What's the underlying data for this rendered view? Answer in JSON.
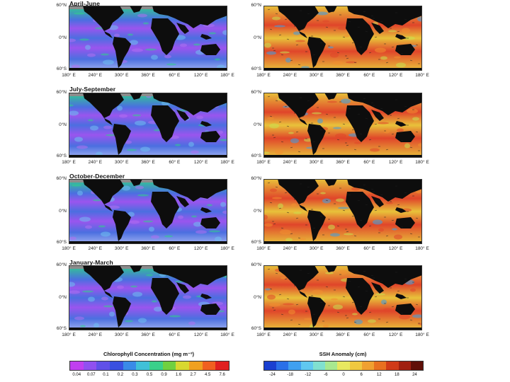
{
  "rows": [
    {
      "season": "April-June"
    },
    {
      "season": "July-September"
    },
    {
      "season": "October-December"
    },
    {
      "season": "January-March"
    }
  ],
  "latitude_labels": [
    "60°N",
    "0°N",
    "60°S"
  ],
  "longitude_labels": [
    "180° E",
    "240° E",
    "300° E",
    "360° E",
    "60° E",
    "120° E",
    "180° E"
  ],
  "colors": {
    "land": "#0d0d0d",
    "ice": "#8c8c8c",
    "chl_low": "#9a55ee",
    "chl_mid": "#4b6fe0",
    "chl_high": "#2fd08a",
    "ssh_base": "#e8c23a",
    "ssh_hot": "#e0452a",
    "ssh_cold": "#3aa0e8"
  },
  "colorbars": {
    "chlorophyll": {
      "title": "Chlorophyll Concentration (mg m⁻³)",
      "ticks": [
        "0.04",
        "0.07",
        "0.1",
        "0.2",
        "0.3",
        "0.5",
        "0.9",
        "1.6",
        "2.7",
        "4.5",
        "7.6"
      ],
      "colors": [
        "#c040f0",
        "#9050f0",
        "#6050e8",
        "#3a50e0",
        "#3a8ae8",
        "#40c0d8",
        "#3ad08a",
        "#70d040",
        "#d8d830",
        "#f0a020",
        "#f06020",
        "#e02020"
      ]
    },
    "ssh": {
      "title": "SSH Anomaly (cm)",
      "ticks": [
        "-24",
        "-18",
        "-12",
        "-6",
        "0",
        "6",
        "12",
        "18",
        "24"
      ],
      "colors": [
        "#1a40d0",
        "#2a70e8",
        "#40a0f0",
        "#60c8f0",
        "#80e0d0",
        "#a8e890",
        "#e8e860",
        "#f0c840",
        "#f0a030",
        "#e87020",
        "#d03a18",
        "#a02010",
        "#601008"
      ]
    }
  }
}
